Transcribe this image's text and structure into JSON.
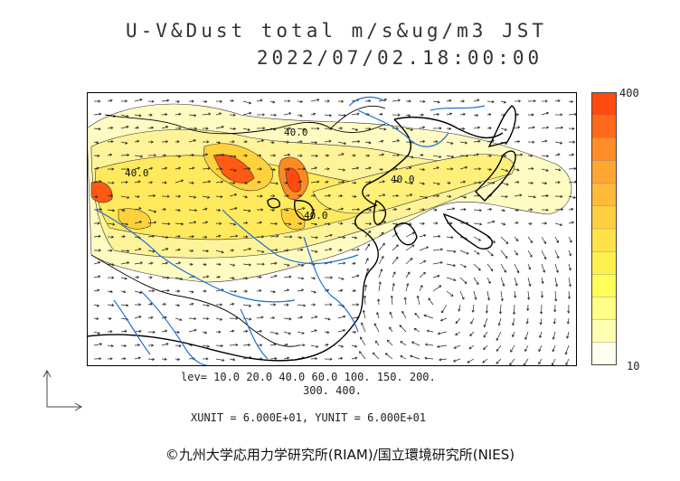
{
  "title_line1": "U-V&Dust total m/s&ug/m3 JST",
  "title_line2": "2022/07/02.18:00:00",
  "colorbar": {
    "max_label": "400",
    "min_label": "10",
    "colors": [
      "#ff4a10",
      "#ff6a1a",
      "#ff8c26",
      "#ffa632",
      "#ffba3a",
      "#ffcf42",
      "#ffe14a",
      "#fff050",
      "#ffff5a",
      "#ffff8a",
      "#ffffb0",
      "#fffff0"
    ]
  },
  "contour_labels": [
    "40.0",
    "40.0",
    "40.0",
    "40.0"
  ],
  "levels_line1": "lev= 10.0 20.0 40.0 60.0 100. 150. 200.",
  "levels_line2": "300. 400.",
  "unit_text": "XUNIT = 6.000E+01, YUNIT = 6.000E+01",
  "credit": "©九州大学応用力学研究所(RIAM)/国立環境研究所(NIES)",
  "colors": {
    "land_line": "#000000",
    "river": "#1a6fd8",
    "dust_low": "#fffbb4",
    "dust_mid": "#ffe84a",
    "dust_high": "#ff5a14"
  }
}
